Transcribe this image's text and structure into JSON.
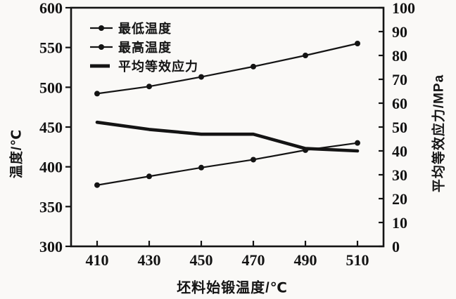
{
  "figure": {
    "background": "#faf9f7",
    "line_color": "#141414"
  },
  "chart_data": {
    "type": "line",
    "x": [
      410,
      430,
      450,
      470,
      490,
      510
    ],
    "x_ticks": [
      410,
      430,
      450,
      470,
      490,
      510
    ],
    "x_range": [
      400,
      520
    ],
    "y_left_range": [
      300,
      600
    ],
    "y_left_ticks": [
      300,
      350,
      400,
      450,
      500,
      550,
      600
    ],
    "y_right_range": [
      0,
      100
    ],
    "y_right_ticks": [
      0,
      10,
      20,
      30,
      40,
      50,
      60,
      70,
      80,
      90,
      100
    ],
    "xlabel": "坯料始锻温度/℃",
    "ylabel_left": "温度/℃",
    "ylabel_right": "平均等效应力/MPa",
    "grid": false,
    "legend_position": "top-left-inside",
    "series": [
      {
        "key": "min-temperature",
        "name": "最低温度",
        "axis": "left",
        "marker": "dot",
        "line_width": 2.2,
        "values": [
          377,
          388,
          399,
          409,
          421,
          430
        ]
      },
      {
        "key": "max-temperature",
        "name": "最高温度",
        "axis": "left",
        "marker": "dot",
        "line_width": 2.2,
        "values": [
          492,
          501,
          513,
          526,
          540,
          555
        ]
      },
      {
        "key": "avg-equivalent-stress",
        "name": "平均等效应力",
        "axis": "right",
        "marker": "none",
        "line_width": 4.6,
        "values": [
          52,
          49,
          47,
          47,
          41,
          40
        ]
      }
    ]
  }
}
